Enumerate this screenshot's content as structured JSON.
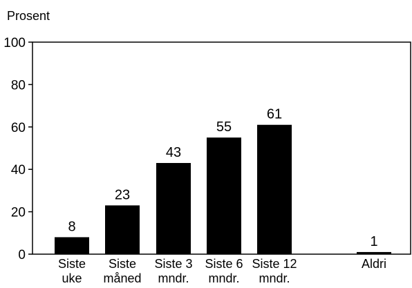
{
  "chart_data": {
    "type": "bar",
    "ylabel": "Prosent",
    "ylim": [
      0,
      100
    ],
    "yticks": [
      0,
      20,
      40,
      60,
      80,
      100
    ],
    "grid": false,
    "legend": "none",
    "bar_color": "#000000",
    "categories": [
      [
        "Siste",
        "uke"
      ],
      [
        "Siste",
        "måned"
      ],
      [
        "Siste 3",
        "mndr."
      ],
      [
        "Siste 6",
        "mndr."
      ],
      [
        "Siste 12",
        "mndr."
      ],
      [
        "Aldri"
      ]
    ],
    "values": [
      8,
      23,
      43,
      55,
      61,
      1
    ],
    "data_labels": [
      "8",
      "23",
      "43",
      "55",
      "61",
      "1"
    ]
  }
}
